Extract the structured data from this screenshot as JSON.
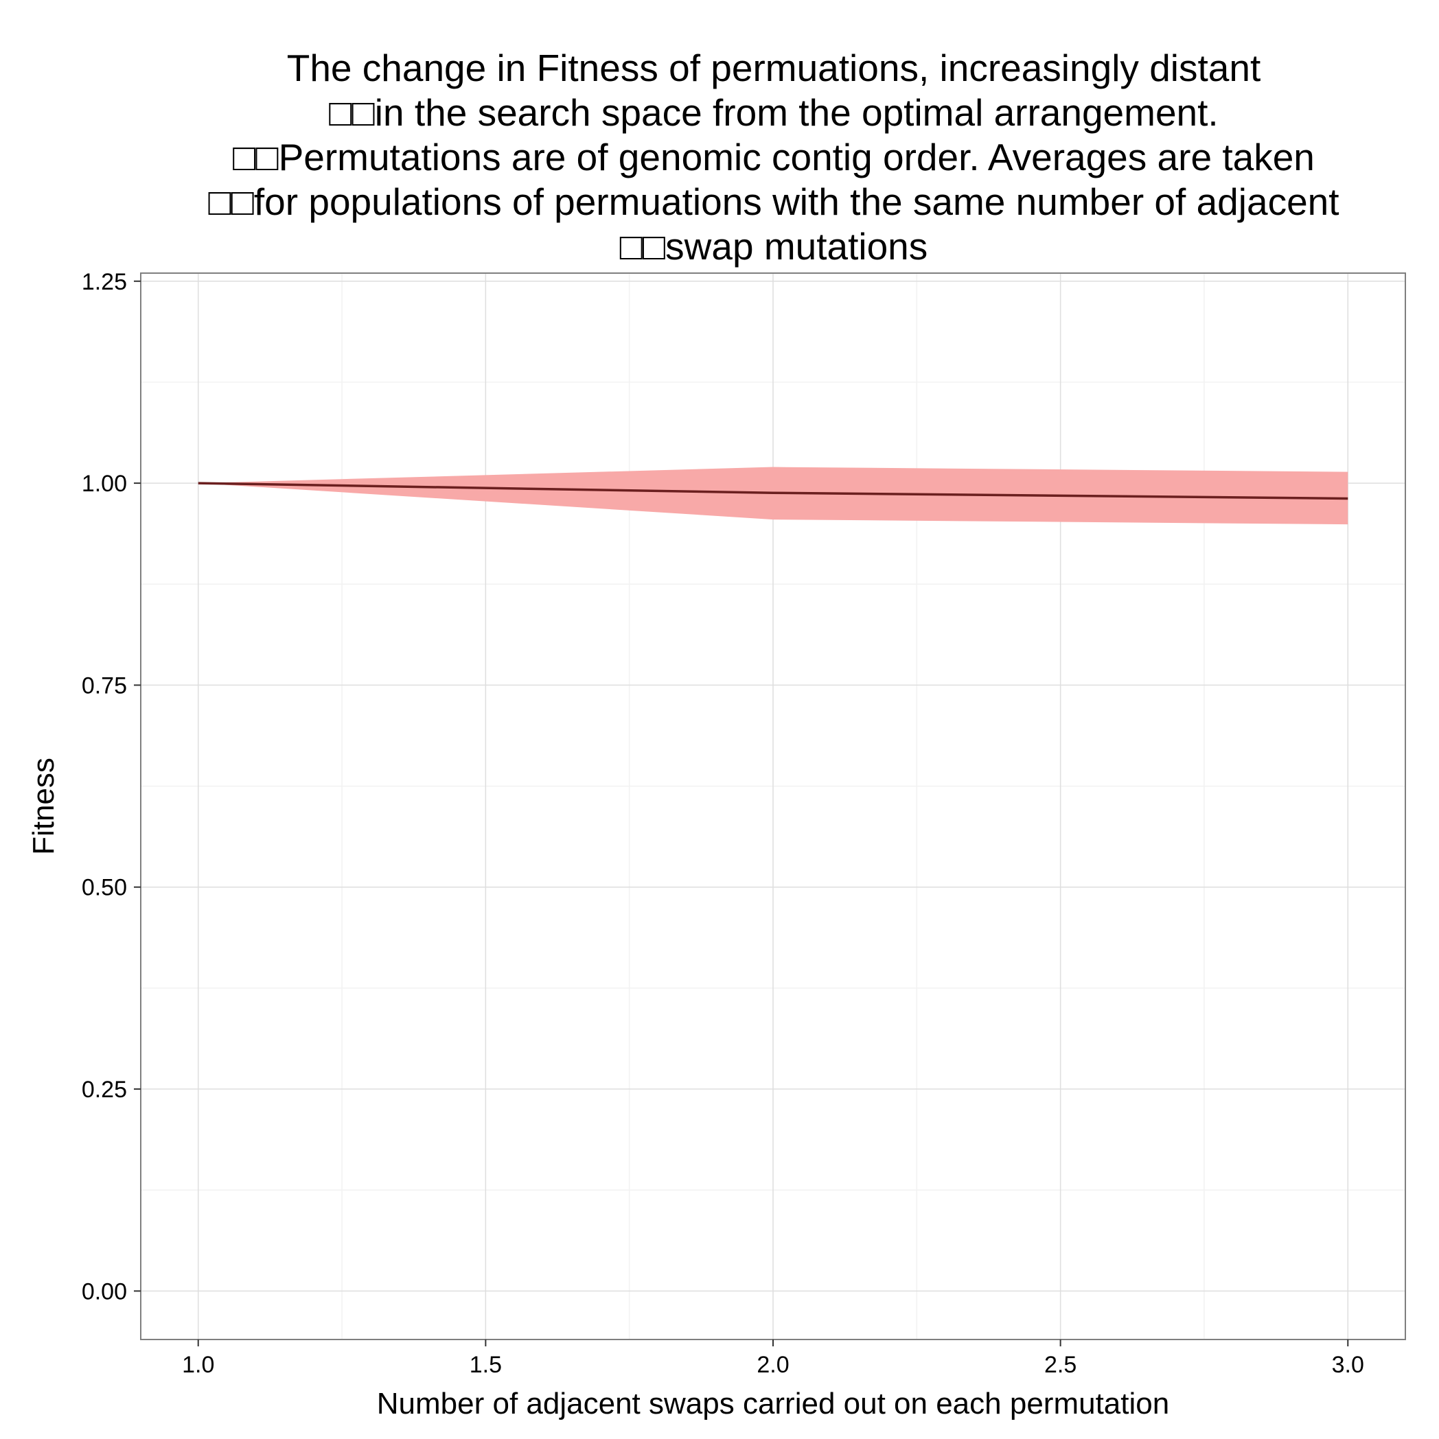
{
  "chart_data": {
    "type": "area",
    "title_lines": [
      "The change in Fitness of permuations, increasingly distant",
      "□□in the search space from the optimal arrangement.",
      "□□Permutations are of genomic contig order. Averages are taken",
      "□□for populations of permuations with the same number of adjacent",
      "□□swap mutations"
    ],
    "xlabel": "Number of adjacent swaps carried out on each permutation",
    "ylabel": "Fitness",
    "xlim": [
      0.9,
      3.1
    ],
    "ylim": [
      -0.06,
      1.26
    ],
    "x_ticks": [
      "1.0",
      "1.5",
      "2.0",
      "2.5",
      "3.0"
    ],
    "y_ticks": [
      "0.00",
      "0.25",
      "0.50",
      "0.75",
      "1.00",
      "1.25"
    ],
    "grid": true,
    "series": [
      {
        "x": [
          1,
          2,
          3
        ],
        "y": [
          1.0,
          0.988,
          0.981
        ],
        "lower": [
          1.0,
          0.955,
          0.949
        ],
        "upper": [
          1.0,
          1.02,
          1.014
        ],
        "line_color": "#6b1f1f",
        "band_color": "#f8a9a8"
      }
    ]
  }
}
